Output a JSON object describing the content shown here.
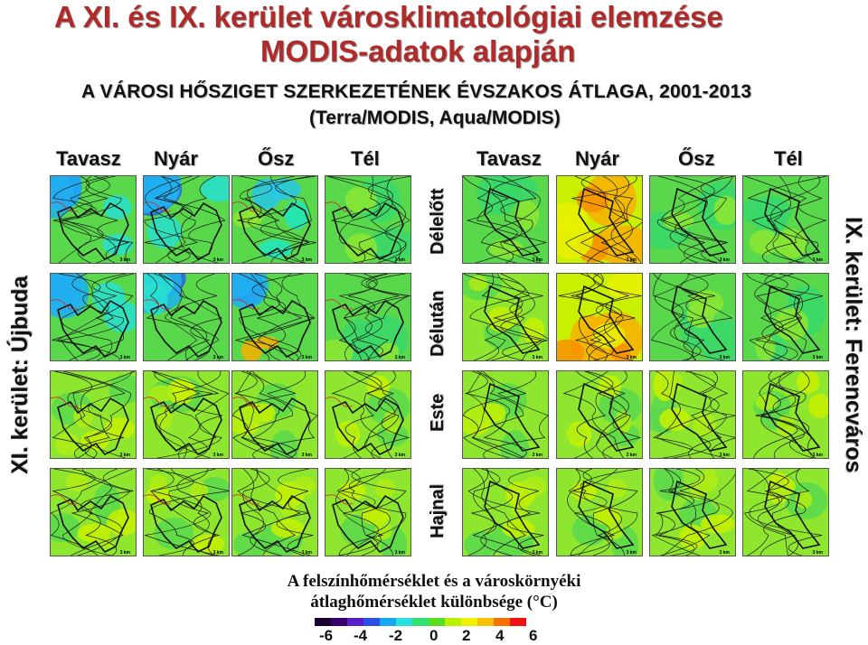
{
  "title_line1": "A XI. és IX. kerület városklimatológiai elemzése",
  "title_line2": "MODIS-adatok alapján",
  "subtitle_line1": "A VÁROSI HŐSZIGET SZERKEZETÉNEK ÉVSZAKOS ÁTLAGA, 2001-2013",
  "subtitle_line2": "(Terra/MODIS, Aqua/MODIS)",
  "seasons": [
    "Tavasz",
    "Nyár",
    "Ősz",
    "Tél"
  ],
  "rows": [
    "Délelőtt",
    "Délután",
    "Este",
    "Hajnal"
  ],
  "left_district": "XI. kerület: Újbuda",
  "right_district": "IX. kerület: Ferencváros",
  "scale_label": "3 km",
  "legend": {
    "title_line1": "A felszínhőmérséklet és a városkörnyéki",
    "title_line2": "átlaghőmérséklet különbsége (°C)",
    "ticks": [
      "-6",
      "-4",
      "-2",
      "0",
      "2",
      "4",
      "6"
    ],
    "colors": [
      "#1a0030",
      "#3a0070",
      "#5a20c8",
      "#2a50e8",
      "#18a8f0",
      "#28e0e0",
      "#30e070",
      "#58e020",
      "#b8f000",
      "#f0f000",
      "#f8c000",
      "#f87000",
      "#f01010"
    ]
  },
  "panel_tones": {
    "left": [
      [
        "cold",
        "cold",
        "cool",
        "neutral"
      ],
      [
        "cold",
        "cold",
        "cold-warm",
        "neutral"
      ],
      [
        "warm",
        "warm",
        "warm",
        "warm"
      ],
      [
        "warm",
        "warm",
        "warm",
        "warm"
      ]
    ],
    "right": [
      [
        "neutral",
        "hot",
        "neutral",
        "neutral"
      ],
      [
        "warm",
        "hot",
        "neutral",
        "neutral"
      ],
      [
        "warm",
        "warm",
        "warm",
        "warm"
      ],
      [
        "warm",
        "warm",
        "warm",
        "warm"
      ]
    ]
  }
}
